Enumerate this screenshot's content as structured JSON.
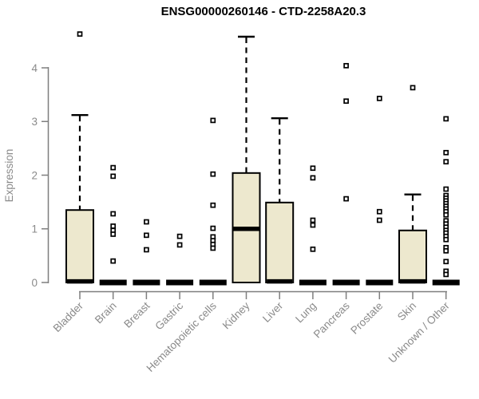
{
  "chart_data": {
    "type": "boxplot",
    "title": "ENSG00000260146 - CTD-2258A20.3",
    "ylabel": "Expression",
    "ylim": [
      0,
      4.7
    ],
    "yticks": [
      0,
      1,
      2,
      3,
      4
    ],
    "grid": false,
    "legend": "none",
    "colors": {
      "box_fill": "#EDE8CE",
      "box_stroke": "#000000",
      "median": "#000000",
      "whisker": "#000000",
      "outlier_stroke": "#000000",
      "outlier_fill": "#ffffff",
      "axis": "#7f7f7f",
      "text": "#8a8a8a",
      "title": "#000000"
    },
    "categories": [
      "Bladder",
      "Brain",
      "Breast",
      "Gastric",
      "Hematopoietic cells",
      "Kidney",
      "Liver",
      "Lung",
      "Pancreas",
      "Prostate",
      "Skin",
      "Unknown / Other"
    ],
    "series": [
      {
        "category": "Bladder",
        "q1": 0,
        "median": 0.02,
        "q3": 1.35,
        "whisker_low": 0,
        "whisker_high": 3.12,
        "outliers": [
          4.63
        ]
      },
      {
        "category": "Brain",
        "q1": 0,
        "median": 0,
        "q3": 0.03,
        "whisker_low": 0,
        "whisker_high": 0.03,
        "outliers": [
          2.14,
          1.98,
          1.28,
          1.05,
          0.97,
          0.9,
          0.4
        ]
      },
      {
        "category": "Breast",
        "q1": 0,
        "median": 0,
        "q3": 0.03,
        "whisker_low": 0,
        "whisker_high": 0.03,
        "outliers": [
          1.13,
          0.88,
          0.61
        ]
      },
      {
        "category": "Gastric",
        "q1": 0,
        "median": 0,
        "q3": 0.03,
        "whisker_low": 0,
        "whisker_high": 0.03,
        "outliers": [
          0.86,
          0.7
        ]
      },
      {
        "category": "Hematopoietic cells",
        "q1": 0,
        "median": 0,
        "q3": 0.03,
        "whisker_low": 0,
        "whisker_high": 0.03,
        "outliers": [
          3.02,
          2.02,
          1.44,
          1.01,
          0.85,
          0.78,
          0.71,
          0.64
        ]
      },
      {
        "category": "Kidney",
        "q1": 0,
        "median": 1.0,
        "q3": 2.04,
        "whisker_low": 0,
        "whisker_high": 4.58,
        "outliers": []
      },
      {
        "category": "Liver",
        "q1": 0,
        "median": 0.02,
        "q3": 1.49,
        "whisker_low": 0,
        "whisker_high": 3.06,
        "outliers": []
      },
      {
        "category": "Lung",
        "q1": 0,
        "median": 0,
        "q3": 0.03,
        "whisker_low": 0,
        "whisker_high": 0.03,
        "outliers": [
          2.13,
          1.95,
          1.16,
          1.07,
          0.62
        ]
      },
      {
        "category": "Pancreas",
        "q1": 0,
        "median": 0,
        "q3": 0.03,
        "whisker_low": 0,
        "whisker_high": 0.03,
        "outliers": [
          4.04,
          3.38,
          1.56
        ]
      },
      {
        "category": "Prostate",
        "q1": 0,
        "median": 0,
        "q3": 0.03,
        "whisker_low": 0,
        "whisker_high": 0.03,
        "outliers": [
          3.43,
          1.32,
          1.16
        ]
      },
      {
        "category": "Skin",
        "q1": 0,
        "median": 0.02,
        "q3": 0.97,
        "whisker_low": 0,
        "whisker_high": 1.64,
        "outliers": [
          3.63
        ]
      },
      {
        "category": "Unknown / Other",
        "q1": 0,
        "median": 0,
        "q3": 0.03,
        "whisker_low": 0,
        "whisker_high": 0.03,
        "outliers": [
          3.05,
          2.42,
          2.25,
          1.74,
          1.62,
          1.57,
          1.52,
          1.47,
          1.42,
          1.37,
          1.32,
          1.26,
          1.15,
          1.09,
          1.03,
          0.97,
          0.92,
          0.86,
          0.8,
          0.65,
          0.59,
          0.39,
          0.21,
          0.15
        ]
      }
    ]
  }
}
